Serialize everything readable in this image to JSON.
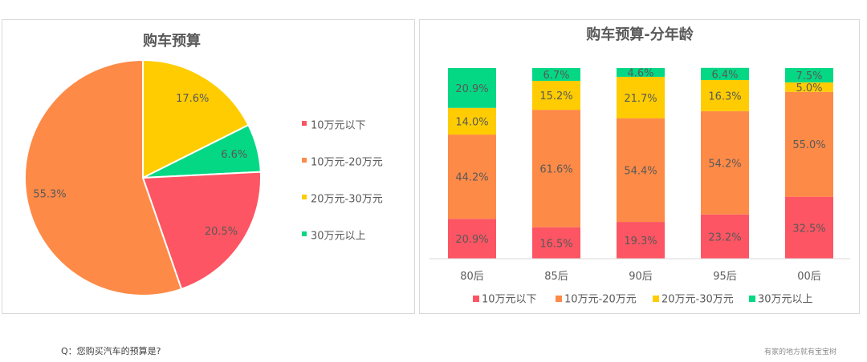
{
  "colors": {
    "under_10": "#fd5563",
    "from_10_to_20": "#fe8a47",
    "from_20_to_30": "#fecc00",
    "over_30": "#05d884"
  },
  "legend": [
    "10万元以下",
    "10万元-20万元",
    "20万元-30万元",
    "30万元以上"
  ],
  "chart_data": [
    {
      "type": "pie",
      "title": "购车预算",
      "labels": [
        "10万元以下",
        "10万元-20万元",
        "20万元-30万元",
        "30万元以上"
      ],
      "values": [
        20.5,
        55.3,
        17.6,
        6.6
      ],
      "value_labels": [
        "20.5%",
        "55.3%",
        "17.6%",
        "6.6%"
      ],
      "legend_position": "right"
    },
    {
      "type": "bar",
      "stacked": true,
      "percent": true,
      "title": "购车预算-分年龄",
      "categories": [
        "80后",
        "85后",
        "90后",
        "95后",
        "00后"
      ],
      "series": [
        {
          "name": "10万元以下",
          "values": [
            20.9,
            16.5,
            19.3,
            23.2,
            32.5
          ]
        },
        {
          "name": "10万元-20万元",
          "values": [
            44.2,
            61.6,
            54.4,
            54.2,
            55.0
          ]
        },
        {
          "name": "20万元-30万元",
          "values": [
            14.0,
            15.2,
            21.7,
            16.3,
            5.0
          ]
        },
        {
          "name": "30万元以上",
          "values": [
            20.9,
            6.7,
            4.6,
            6.4,
            7.5
          ]
        }
      ],
      "value_labels": [
        [
          "20.9%",
          "16.5%",
          "19.3%",
          "23.2%",
          "32.5%"
        ],
        [
          "44.2%",
          "61.6%",
          "54.4%",
          "54.2%",
          "55.0%"
        ],
        [
          "14.0%",
          "15.2%",
          "21.7%",
          "16.3%",
          "5.0%"
        ],
        [
          "20.9%",
          "6.7%",
          "4.6%",
          "6.4%",
          "7.5%"
        ]
      ],
      "legend_position": "bottom"
    }
  ],
  "footer": {
    "question": "Q：您购买汽车的预算是?",
    "source": "有家的地方就有宝宝树"
  }
}
